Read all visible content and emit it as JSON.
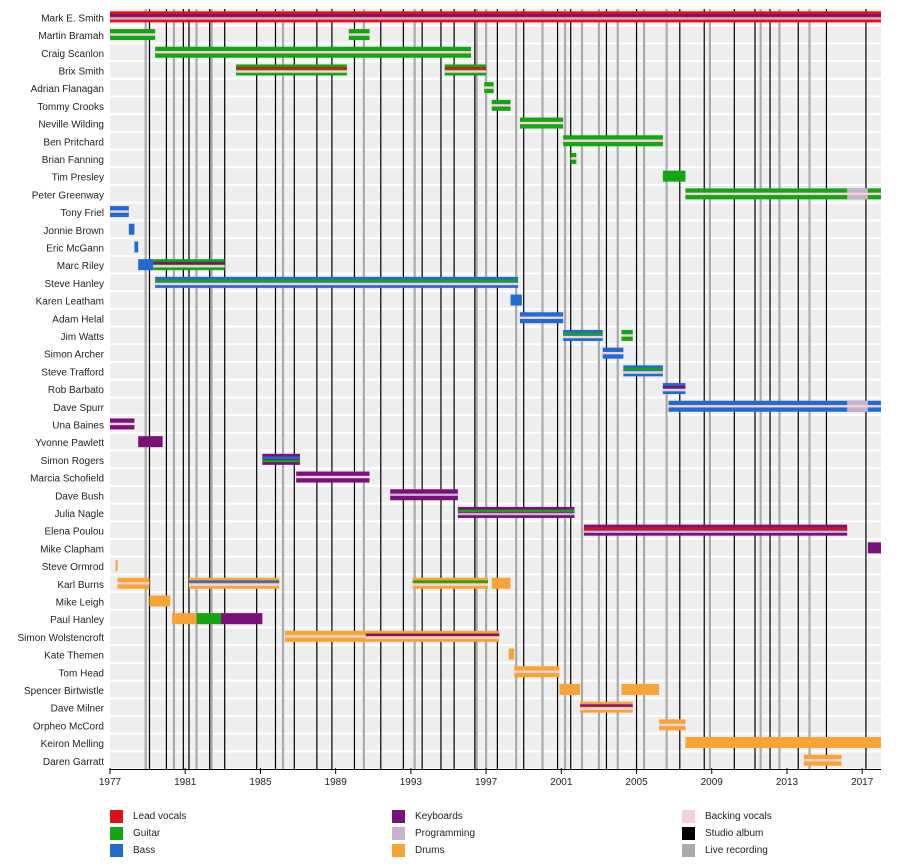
{
  "chart_data": {
    "type": "timeline",
    "title": "",
    "xlim": [
      1977,
      2018
    ],
    "x_ticks": [
      1977,
      1981,
      1985,
      1989,
      1993,
      1997,
      2001,
      2005,
      2009,
      2013,
      2017
    ],
    "roles": [
      {
        "key": "lead_vocals",
        "name": "Lead vocals",
        "color": "#e0101a"
      },
      {
        "key": "guitar",
        "name": "Guitar",
        "color": "#14a514"
      },
      {
        "key": "bass",
        "name": "Bass",
        "color": "#1f6bd0"
      },
      {
        "key": "keyboards",
        "name": "Keyboards",
        "color": "#7a117a"
      },
      {
        "key": "programming",
        "name": "Programming",
        "color": "#c4b4cc"
      },
      {
        "key": "drums",
        "name": "Drums",
        "color": "#f7a436"
      },
      {
        "key": "backing_vocals",
        "name": "Backing vocals",
        "color": "#f7cfd6"
      },
      {
        "key": "studio_album",
        "name": "Studio album",
        "color": "#000000"
      },
      {
        "key": "live_recording",
        "name": "Live recording",
        "color": "#aaaaaa"
      }
    ],
    "members": [
      {
        "name": "Mark E. Smith",
        "bars": [
          {
            "start": 1977.0,
            "end": 2018.0,
            "roles": [
              "lead_vocals",
              "keyboards",
              "programming"
            ]
          }
        ]
      },
      {
        "name": "Martin Bramah",
        "bars": [
          {
            "start": 1977.0,
            "end": 1979.4,
            "roles": [
              "guitar",
              "backing_vocals"
            ]
          },
          {
            "start": 1989.7,
            "end": 1990.8,
            "roles": [
              "guitar",
              "backing_vocals"
            ]
          }
        ]
      },
      {
        "name": "Craig Scanlon",
        "bars": [
          {
            "start": 1979.4,
            "end": 1996.2,
            "roles": [
              "guitar",
              "backing_vocals"
            ]
          }
        ]
      },
      {
        "name": "Brix Smith",
        "bars": [
          {
            "start": 1983.7,
            "end": 1989.6,
            "roles": [
              "guitar",
              "lead_vocals",
              "backing_vocals"
            ]
          },
          {
            "start": 1994.8,
            "end": 1997.0,
            "roles": [
              "guitar",
              "lead_vocals",
              "backing_vocals"
            ]
          }
        ]
      },
      {
        "name": "Adrian Flanagan",
        "bars": [
          {
            "start": 1996.9,
            "end": 1997.4,
            "roles": [
              "guitar",
              "backing_vocals"
            ]
          }
        ]
      },
      {
        "name": "Tommy Crooks",
        "bars": [
          {
            "start": 1997.3,
            "end": 1998.3,
            "roles": [
              "guitar",
              "backing_vocals"
            ]
          }
        ]
      },
      {
        "name": "Neville Wilding",
        "bars": [
          {
            "start": 1998.8,
            "end": 2001.1,
            "roles": [
              "guitar",
              "backing_vocals"
            ]
          }
        ]
      },
      {
        "name": "Ben Pritchard",
        "bars": [
          {
            "start": 2001.1,
            "end": 2006.4,
            "roles": [
              "guitar",
              "backing_vocals"
            ]
          }
        ]
      },
      {
        "name": "Brian Fanning",
        "bars": [
          {
            "start": 2001.5,
            "end": 2001.8,
            "roles": [
              "guitar",
              "backing_vocals"
            ]
          }
        ]
      },
      {
        "name": "Tim Presley",
        "bars": [
          {
            "start": 2006.4,
            "end": 2007.6,
            "roles": [
              "guitar"
            ]
          }
        ]
      },
      {
        "name": "Peter Greenway",
        "bars": [
          {
            "start": 2007.6,
            "end": 2018.0,
            "roles": [
              "guitar",
              "backing_vocals"
            ]
          },
          {
            "start": 2016.2,
            "end": 2017.3,
            "roles": [
              "programming",
              "backing_vocals"
            ]
          }
        ]
      },
      {
        "name": "Tony Friel",
        "bars": [
          {
            "start": 1977.0,
            "end": 1978.0,
            "roles": [
              "bass",
              "backing_vocals"
            ]
          }
        ]
      },
      {
        "name": "Jonnie Brown",
        "bars": [
          {
            "start": 1978.0,
            "end": 1978.3,
            "roles": [
              "bass"
            ]
          }
        ]
      },
      {
        "name": "Eric McGann",
        "bars": [
          {
            "start": 1978.3,
            "end": 1978.5,
            "roles": [
              "bass"
            ]
          }
        ]
      },
      {
        "name": "Marc Riley",
        "bars": [
          {
            "start": 1978.5,
            "end": 1979.3,
            "roles": [
              "bass"
            ]
          },
          {
            "start": 1979.3,
            "end": 1983.1,
            "roles": [
              "guitar",
              "keyboards",
              "backing_vocals"
            ]
          }
        ]
      },
      {
        "name": "Steve Hanley",
        "bars": [
          {
            "start": 1979.4,
            "end": 1998.7,
            "roles": [
              "bass",
              "guitar",
              "backing_vocals"
            ]
          }
        ]
      },
      {
        "name": "Karen Leatham",
        "bars": [
          {
            "start": 1998.3,
            "end": 1998.9,
            "roles": [
              "bass"
            ]
          }
        ]
      },
      {
        "name": "Adam Helal",
        "bars": [
          {
            "start": 1998.8,
            "end": 2001.1,
            "roles": [
              "bass",
              "backing_vocals"
            ]
          }
        ]
      },
      {
        "name": "Jim Watts",
        "bars": [
          {
            "start": 2001.1,
            "end": 2003.2,
            "roles": [
              "bass",
              "guitar",
              "backing_vocals"
            ]
          },
          {
            "start": 2004.2,
            "end": 2004.8,
            "roles": [
              "guitar",
              "backing_vocals"
            ]
          }
        ]
      },
      {
        "name": "Simon Archer",
        "bars": [
          {
            "start": 2003.2,
            "end": 2004.3,
            "roles": [
              "bass",
              "backing_vocals"
            ]
          }
        ]
      },
      {
        "name": "Steve Trafford",
        "bars": [
          {
            "start": 2004.3,
            "end": 2006.4,
            "roles": [
              "bass",
              "guitar",
              "backing_vocals"
            ]
          }
        ]
      },
      {
        "name": "Rob Barbato",
        "bars": [
          {
            "start": 2006.4,
            "end": 2007.6,
            "roles": [
              "bass",
              "keyboards",
              "backing_vocals"
            ]
          }
        ]
      },
      {
        "name": "Dave Spurr",
        "bars": [
          {
            "start": 2006.7,
            "end": 2018.0,
            "roles": [
              "bass",
              "backing_vocals"
            ]
          },
          {
            "start": 2016.2,
            "end": 2017.3,
            "roles": [
              "programming",
              "backing_vocals"
            ]
          }
        ]
      },
      {
        "name": "Una Baines",
        "bars": [
          {
            "start": 1977.0,
            "end": 1978.3,
            "roles": [
              "keyboards",
              "backing_vocals"
            ]
          }
        ]
      },
      {
        "name": "Yvonne Pawlett",
        "bars": [
          {
            "start": 1978.5,
            "end": 1979.8,
            "roles": [
              "keyboards"
            ]
          }
        ]
      },
      {
        "name": "Simon Rogers",
        "bars": [
          {
            "start": 1985.1,
            "end": 1987.1,
            "roles": [
              "keyboards",
              "bass",
              "guitar"
            ]
          }
        ]
      },
      {
        "name": "Marcia Schofield",
        "bars": [
          {
            "start": 1986.9,
            "end": 1990.8,
            "roles": [
              "keyboards",
              "backing_vocals"
            ]
          }
        ]
      },
      {
        "name": "Dave Bush",
        "bars": [
          {
            "start": 1991.9,
            "end": 1995.5,
            "roles": [
              "keyboards",
              "programming"
            ]
          }
        ]
      },
      {
        "name": "Julia Nagle",
        "bars": [
          {
            "start": 1995.5,
            "end": 2001.7,
            "roles": [
              "keyboards",
              "guitar",
              "programming"
            ]
          }
        ]
      },
      {
        "name": "Elena Poulou",
        "bars": [
          {
            "start": 2002.2,
            "end": 2016.2,
            "roles": [
              "keyboards",
              "lead_vocals",
              "programming"
            ]
          }
        ]
      },
      {
        "name": "Mike Clapham",
        "bars": [
          {
            "start": 2017.3,
            "end": 2018.0,
            "roles": [
              "keyboards"
            ]
          }
        ]
      },
      {
        "name": "Steve Ormrod",
        "bars": [
          {
            "start": 1977.3,
            "end": 1977.4,
            "roles": [
              "drums"
            ]
          }
        ]
      },
      {
        "name": "Karl Burns",
        "bars": [
          {
            "start": 1977.4,
            "end": 1979.1,
            "roles": [
              "drums",
              "backing_vocals"
            ]
          },
          {
            "start": 1981.2,
            "end": 1986.0,
            "roles": [
              "drums",
              "bass",
              "backing_vocals"
            ]
          },
          {
            "start": 1993.1,
            "end": 1997.1,
            "roles": [
              "drums",
              "guitar",
              "backing_vocals"
            ]
          },
          {
            "start": 1997.3,
            "end": 1998.3,
            "roles": [
              "drums"
            ]
          }
        ]
      },
      {
        "name": "Mike Leigh",
        "bars": [
          {
            "start": 1979.1,
            "end": 1980.2,
            "roles": [
              "drums"
            ]
          }
        ]
      },
      {
        "name": "Paul Hanley",
        "bars": [
          {
            "start": 1980.3,
            "end": 1985.1,
            "roles": [
              "drums"
            ]
          },
          {
            "start": 1981.6,
            "end": 1982.9,
            "roles": [
              "guitar"
            ]
          },
          {
            "start": 1982.9,
            "end": 1985.1,
            "roles": [
              "keyboards"
            ]
          }
        ]
      },
      {
        "name": "Simon Wolstencroft",
        "bars": [
          {
            "start": 1986.3,
            "end": 1990.6,
            "roles": [
              "drums",
              "backing_vocals"
            ]
          },
          {
            "start": 1990.6,
            "end": 1997.7,
            "roles": [
              "drums",
              "keyboards",
              "backing_vocals"
            ]
          }
        ]
      },
      {
        "name": "Kate Themen",
        "bars": [
          {
            "start": 1998.2,
            "end": 1998.5,
            "roles": [
              "drums"
            ]
          }
        ]
      },
      {
        "name": "Tom Head",
        "bars": [
          {
            "start": 1998.5,
            "end": 2000.9,
            "roles": [
              "drums",
              "backing_vocals"
            ]
          }
        ]
      },
      {
        "name": "Spencer Birtwistle",
        "bars": [
          {
            "start": 2000.9,
            "end": 2002.0,
            "roles": [
              "drums"
            ]
          },
          {
            "start": 2004.2,
            "end": 2006.2,
            "roles": [
              "drums"
            ]
          }
        ]
      },
      {
        "name": "Dave Milner",
        "bars": [
          {
            "start": 2002.0,
            "end": 2004.8,
            "roles": [
              "drums",
              "keyboards",
              "backing_vocals"
            ]
          }
        ]
      },
      {
        "name": "Orpheo McCord",
        "bars": [
          {
            "start": 2006.2,
            "end": 2007.6,
            "roles": [
              "drums",
              "backing_vocals"
            ]
          }
        ]
      },
      {
        "name": "Keiron Melling",
        "bars": [
          {
            "start": 2007.6,
            "end": 2018.0,
            "roles": [
              "drums"
            ]
          }
        ]
      },
      {
        "name": "Daren Garratt",
        "bars": [
          {
            "start": 2013.9,
            "end": 2015.9,
            "roles": [
              "drums",
              "backing_vocals"
            ]
          }
        ]
      }
    ],
    "studio_albums": [
      1979.1,
      1980.0,
      1980.9,
      1981.2,
      1982.3,
      1983.1,
      1984.8,
      1985.8,
      1986.8,
      1988.0,
      1988.8,
      1990.0,
      1991.4,
      1992.6,
      1993.6,
      1994.6,
      1995.3,
      1996.4,
      1997.6,
      1999.0,
      2000.8,
      2001.5,
      2003.4,
      2005.0,
      2007.3,
      2008.6,
      2010.2,
      2011.3,
      2012.1,
      2013.6,
      2015.1,
      2017.2
    ],
    "live_recordings": [
      1978.9,
      1980.4,
      1981.6,
      1982.4,
      1986.2,
      1990.5,
      1993.2,
      1996.5,
      1997.0,
      1998.6,
      2000.0,
      2001.2,
      2002.1,
      2003.0,
      2004.0,
      2005.4,
      2006.6,
      2008.9,
      2011.6,
      2012.6,
      2014.2
    ]
  }
}
